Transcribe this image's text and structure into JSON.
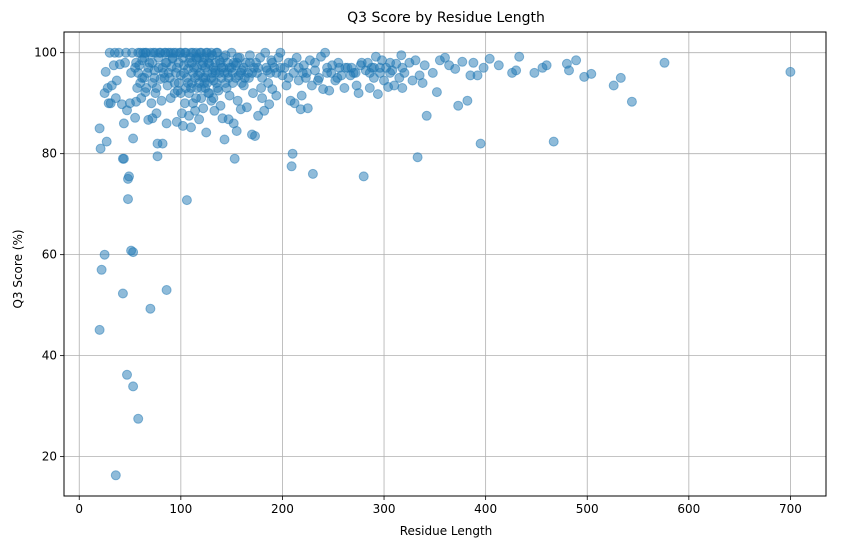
{
  "chart_data": {
    "type": "scatter",
    "title": "Q3 Score by Residue Length",
    "xlabel": "Residue Length",
    "ylabel": "Q3 Score (%)",
    "xlim": [
      -15,
      735
    ],
    "ylim": [
      12.2,
      104.1
    ],
    "xticks": [
      0,
      100,
      200,
      300,
      400,
      500,
      600,
      700
    ],
    "yticks": [
      20,
      40,
      60,
      80,
      100
    ],
    "xtick_labels": [
      "0",
      "100",
      "200",
      "300",
      "400",
      "500",
      "600",
      "700"
    ],
    "ytick_labels": [
      "20",
      "40",
      "60",
      "80",
      "100"
    ],
    "grid": true,
    "point_color": "#1f77b4",
    "point_alpha": 0.5,
    "points": [
      [
        20,
        45.1
      ],
      [
        20,
        85
      ],
      [
        21,
        81
      ],
      [
        22,
        57
      ],
      [
        25,
        92
      ],
      [
        25,
        60
      ],
      [
        26,
        96.2
      ],
      [
        27,
        82.4
      ],
      [
        28,
        93
      ],
      [
        29,
        90
      ],
      [
        30,
        100
      ],
      [
        31,
        90
      ],
      [
        32,
        93.5
      ],
      [
        34,
        97.5
      ],
      [
        35,
        100
      ],
      [
        36,
        91
      ],
      [
        36,
        16.3
      ],
      [
        37,
        94.5
      ],
      [
        39,
        100
      ],
      [
        40,
        97.7
      ],
      [
        42,
        89.8
      ],
      [
        43,
        79
      ],
      [
        44,
        79
      ],
      [
        43,
        52.3
      ],
      [
        44,
        86
      ],
      [
        45,
        98
      ],
      [
        46,
        100
      ],
      [
        47,
        88.6
      ],
      [
        47,
        36.2
      ],
      [
        48,
        71
      ],
      [
        48,
        75
      ],
      [
        49,
        75.5
      ],
      [
        50,
        90
      ],
      [
        51,
        96
      ],
      [
        51,
        60.8
      ],
      [
        52,
        100
      ],
      [
        53,
        83
      ],
      [
        53,
        60.5
      ],
      [
        53,
        33.9
      ],
      [
        55,
        87.1
      ],
      [
        55,
        97
      ],
      [
        56,
        90.3
      ],
      [
        57,
        93
      ],
      [
        58,
        100
      ],
      [
        58,
        27.5
      ],
      [
        59,
        97.5
      ],
      [
        60,
        94
      ],
      [
        61,
        91
      ],
      [
        62,
        98.5
      ],
      [
        63,
        100
      ],
      [
        64,
        95
      ],
      [
        65,
        92.2
      ],
      [
        66,
        100
      ],
      [
        67,
        96
      ],
      [
        68,
        86.7
      ],
      [
        69,
        98
      ],
      [
        70,
        49.3
      ],
      [
        70,
        100
      ],
      [
        71,
        90
      ],
      [
        72,
        87
      ],
      [
        72,
        94
      ],
      [
        73,
        100
      ],
      [
        74,
        96.5
      ],
      [
        75,
        92
      ],
      [
        76,
        88
      ],
      [
        77,
        82
      ],
      [
        77,
        79.5
      ],
      [
        78,
        97
      ],
      [
        79,
        100
      ],
      [
        80,
        94.8
      ],
      [
        81,
        90.5
      ],
      [
        82,
        82
      ],
      [
        83,
        96
      ],
      [
        84,
        100
      ],
      [
        85,
        98
      ],
      [
        86,
        86
      ],
      [
        86,
        53
      ],
      [
        87,
        93.5
      ],
      [
        88,
        100
      ],
      [
        89,
        95
      ],
      [
        90,
        91
      ],
      [
        91,
        97.2
      ],
      [
        92,
        98.8
      ],
      [
        93,
        100
      ],
      [
        94,
        94
      ],
      [
        95,
        96
      ],
      [
        96,
        86.3
      ],
      [
        97,
        92.5
      ],
      [
        98,
        98
      ],
      [
        99,
        100
      ],
      [
        100,
        95.5
      ],
      [
        101,
        88
      ],
      [
        102,
        85.5
      ],
      [
        103,
        97.5
      ],
      [
        104,
        100
      ],
      [
        105,
        93
      ],
      [
        106,
        70.8
      ],
      [
        107,
        96.8
      ],
      [
        108,
        87.5
      ],
      [
        109,
        99
      ],
      [
        110,
        85.2
      ],
      [
        111,
        94
      ],
      [
        112,
        100
      ],
      [
        113,
        97
      ],
      [
        114,
        88.5
      ],
      [
        115,
        91
      ],
      [
        116,
        98.8
      ],
      [
        117,
        95.5
      ],
      [
        118,
        86.8
      ],
      [
        119,
        100
      ],
      [
        120,
        93
      ],
      [
        121,
        97.5
      ],
      [
        122,
        89
      ],
      [
        123,
        99
      ],
      [
        124,
        95
      ],
      [
        125,
        84.2
      ],
      [
        126,
        100
      ],
      [
        127,
        92
      ],
      [
        128,
        97.8
      ],
      [
        130,
        90.5
      ],
      [
        131,
        99.5
      ],
      [
        132,
        94.5
      ],
      [
        133,
        88.5
      ],
      [
        134,
        96.5
      ],
      [
        136,
        100
      ],
      [
        137,
        92.5
      ],
      [
        138,
        98.5
      ],
      [
        139,
        89.5
      ],
      [
        140,
        95
      ],
      [
        141,
        87
      ],
      [
        142,
        97
      ],
      [
        143,
        82.8
      ],
      [
        144,
        99.5
      ],
      [
        145,
        93
      ],
      [
        146,
        96
      ],
      [
        147,
        86.8
      ],
      [
        148,
        91.5
      ],
      [
        150,
        100
      ],
      [
        151,
        94
      ],
      [
        152,
        86
      ],
      [
        153,
        79
      ],
      [
        154,
        97.5
      ],
      [
        155,
        84.5
      ],
      [
        156,
        90.5
      ],
      [
        157,
        95.5
      ],
      [
        158,
        99
      ],
      [
        159,
        88.8
      ],
      [
        160,
        96.5
      ],
      [
        162,
        93.5
      ],
      [
        164,
        98
      ],
      [
        165,
        89.2
      ],
      [
        167,
        95
      ],
      [
        168,
        99.5
      ],
      [
        170,
        83.8
      ],
      [
        171,
        92
      ],
      [
        172,
        97
      ],
      [
        173,
        83.5
      ],
      [
        175,
        96
      ],
      [
        176,
        87.5
      ],
      [
        178,
        99
      ],
      [
        179,
        93
      ],
      [
        180,
        91
      ],
      [
        182,
        88.5
      ],
      [
        183,
        100
      ],
      [
        185,
        96.5
      ],
      [
        186,
        94
      ],
      [
        187,
        89.8
      ],
      [
        189,
        98.5
      ],
      [
        190,
        92.8
      ],
      [
        192,
        97
      ],
      [
        194,
        91.5
      ],
      [
        196,
        99
      ],
      [
        198,
        100
      ],
      [
        200,
        95.5
      ],
      [
        202,
        97
      ],
      [
        204,
        93.5
      ],
      [
        206,
        98
      ],
      [
        208,
        90.5
      ],
      [
        209,
        77.5
      ],
      [
        210,
        80
      ],
      [
        211,
        96
      ],
      [
        212,
        90
      ],
      [
        214,
        99
      ],
      [
        216,
        94.5
      ],
      [
        218,
        88.8
      ],
      [
        219,
        91.5
      ],
      [
        221,
        97.5
      ],
      [
        223,
        95
      ],
      [
        225,
        89
      ],
      [
        227,
        98.5
      ],
      [
        229,
        93.5
      ],
      [
        230,
        76
      ],
      [
        232,
        96.5
      ],
      [
        235,
        94.5
      ],
      [
        238,
        99.2
      ],
      [
        240,
        92.8
      ],
      [
        242,
        100
      ],
      [
        244,
        96
      ],
      [
        246,
        92.5
      ],
      [
        249,
        97.5
      ],
      [
        252,
        94.5
      ],
      [
        255,
        98
      ],
      [
        258,
        95.5
      ],
      [
        261,
        93
      ],
      [
        264,
        97
      ],
      [
        267,
        95.5
      ],
      [
        270,
        96
      ],
      [
        273,
        93.5
      ],
      [
        275,
        92
      ],
      [
        277,
        97.5
      ],
      [
        280,
        75.5
      ],
      [
        282,
        96.5
      ],
      [
        284,
        98
      ],
      [
        286,
        93
      ],
      [
        288,
        97
      ],
      [
        290,
        95
      ],
      [
        292,
        99.2
      ],
      [
        294,
        91.8
      ],
      [
        296,
        96
      ],
      [
        298,
        98.5
      ],
      [
        300,
        94.5
      ],
      [
        302,
        97
      ],
      [
        304,
        93.2
      ],
      [
        306,
        98
      ],
      [
        308,
        96.5
      ],
      [
        310,
        93.5
      ],
      [
        312,
        97.8
      ],
      [
        315,
        95
      ],
      [
        317,
        99.5
      ],
      [
        318,
        93
      ],
      [
        320,
        96
      ],
      [
        325,
        98
      ],
      [
        328,
        94.5
      ],
      [
        331,
        98.5
      ],
      [
        333,
        79.3
      ],
      [
        335,
        95.5
      ],
      [
        338,
        94
      ],
      [
        340,
        97.5
      ],
      [
        342,
        87.5
      ],
      [
        348,
        96
      ],
      [
        352,
        92.2
      ],
      [
        355,
        98.5
      ],
      [
        360,
        99
      ],
      [
        364,
        97.5
      ],
      [
        370,
        96.8
      ],
      [
        373,
        89.5
      ],
      [
        377,
        98.2
      ],
      [
        382,
        90.5
      ],
      [
        385,
        95.5
      ],
      [
        388,
        98
      ],
      [
        392,
        95.5
      ],
      [
        395,
        82
      ],
      [
        398,
        97
      ],
      [
        404,
        98.8
      ],
      [
        413,
        97.5
      ],
      [
        426,
        96
      ],
      [
        430,
        96.5
      ],
      [
        433,
        99.2
      ],
      [
        448,
        96
      ],
      [
        456,
        97
      ],
      [
        460,
        97.5
      ],
      [
        467,
        82.4
      ],
      [
        480,
        97.8
      ],
      [
        482,
        96.5
      ],
      [
        489,
        98.5
      ],
      [
        497,
        95.2
      ],
      [
        504,
        95.8
      ],
      [
        526,
        93.5
      ],
      [
        533,
        95
      ],
      [
        544,
        90.3
      ],
      [
        576,
        98
      ],
      [
        700,
        96.2
      ],
      [
        60,
        100
      ],
      [
        65,
        100
      ],
      [
        75,
        100
      ],
      [
        80,
        100
      ],
      [
        85,
        100
      ],
      [
        90,
        100
      ],
      [
        95,
        100
      ],
      [
        100,
        100
      ],
      [
        105,
        100
      ],
      [
        110,
        100
      ],
      [
        115,
        100
      ],
      [
        120,
        100
      ],
      [
        125,
        100
      ],
      [
        130,
        100
      ],
      [
        135,
        100
      ],
      [
        62,
        95
      ],
      [
        68,
        97
      ],
      [
        72,
        98
      ],
      [
        78,
        99
      ],
      [
        82,
        97
      ],
      [
        88,
        96
      ],
      [
        92,
        99
      ],
      [
        96,
        97
      ],
      [
        102,
        99
      ],
      [
        106,
        95
      ],
      [
        108,
        98
      ],
      [
        112,
        96
      ],
      [
        116,
        97
      ],
      [
        118,
        99
      ],
      [
        122,
        98
      ],
      [
        124,
        97
      ],
      [
        126,
        96
      ],
      [
        128,
        99
      ],
      [
        132,
        97
      ],
      [
        134,
        98
      ],
      [
        138,
        96
      ],
      [
        142,
        99
      ],
      [
        146,
        98
      ],
      [
        148,
        97
      ],
      [
        152,
        98
      ],
      [
        156,
        99
      ],
      [
        162,
        97
      ],
      [
        166,
        96
      ],
      [
        174,
        98
      ],
      [
        184,
        97
      ],
      [
        190,
        98
      ],
      [
        194,
        96
      ],
      [
        206,
        95
      ],
      [
        216,
        97
      ],
      [
        224,
        96
      ],
      [
        236,
        95
      ],
      [
        248,
        96
      ],
      [
        256,
        97
      ],
      [
        268,
        97
      ],
      [
        278,
        98
      ],
      [
        290,
        97
      ],
      [
        100,
        92
      ],
      [
        104,
        90
      ],
      [
        108,
        92
      ],
      [
        112,
        90
      ],
      [
        116,
        93
      ],
      [
        120,
        91
      ],
      [
        124,
        93
      ],
      [
        128,
        92
      ],
      [
        132,
        91
      ],
      [
        136,
        93
      ],
      [
        110,
        93
      ],
      [
        114,
        95
      ],
      [
        118,
        94
      ],
      [
        122,
        95
      ],
      [
        126,
        94
      ],
      [
        130,
        95
      ],
      [
        134,
        96
      ],
      [
        140,
        97
      ],
      [
        144,
        94
      ],
      [
        150,
        97
      ],
      [
        154,
        95
      ],
      [
        160,
        94
      ],
      [
        170,
        96
      ],
      [
        180,
        95
      ],
      [
        56,
        98
      ],
      [
        58,
        96
      ],
      [
        64,
        99
      ],
      [
        66,
        93
      ],
      [
        74,
        95
      ],
      [
        76,
        93
      ],
      [
        84,
        95
      ],
      [
        86,
        98
      ],
      [
        94,
        92
      ],
      [
        98,
        94
      ],
      [
        103,
        96
      ],
      [
        107,
        94
      ],
      [
        111,
        98
      ],
      [
        115,
        99
      ],
      [
        119,
        96
      ],
      [
        123,
        94
      ],
      [
        127,
        98
      ],
      [
        131,
        96
      ],
      [
        135,
        94
      ],
      [
        139,
        98
      ],
      [
        143,
        96
      ],
      [
        147,
        95
      ],
      [
        151,
        96
      ],
      [
        155,
        98
      ],
      [
        159,
        96
      ],
      [
        163,
        95
      ],
      [
        168,
        98
      ],
      [
        176,
        97
      ],
      [
        188,
        96
      ],
      [
        198,
        97
      ],
      [
        210,
        98
      ],
      [
        220,
        96
      ],
      [
        232,
        98
      ],
      [
        244,
        97
      ],
      [
        254,
        95
      ],
      [
        262,
        97
      ],
      [
        272,
        96
      ],
      [
        286,
        96
      ],
      [
        296,
        97
      ],
      [
        306,
        96
      ],
      [
        318,
        97
      ]
    ]
  }
}
